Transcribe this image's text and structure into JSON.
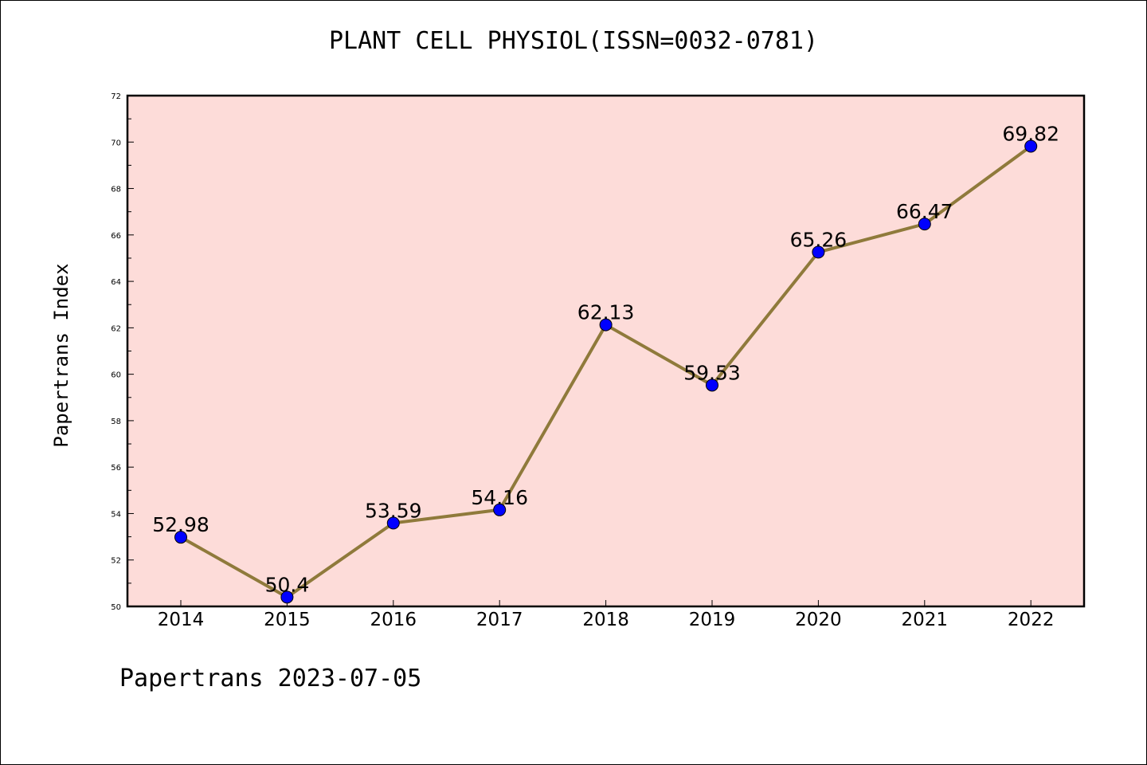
{
  "chart_data": {
    "type": "line",
    "title": "PLANT CELL PHYSIOL(ISSN=0032-0781)",
    "ylabel": "Papertrans Index",
    "xlabel": "",
    "x": [
      "2014",
      "2015",
      "2016",
      "2017",
      "2018",
      "2019",
      "2020",
      "2021",
      "2022"
    ],
    "series": [
      {
        "values": [
          52.98,
          50.4,
          53.59,
          54.16,
          62.13,
          59.53,
          65.26,
          66.47,
          69.82
        ],
        "labels": [
          "52.98",
          "50.4",
          "53.59",
          "54.16",
          "62.13",
          "59.53",
          "65.26",
          "66.47",
          "69.82"
        ]
      }
    ],
    "ylim": [
      50,
      72
    ],
    "yticks": [
      "50",
      "52",
      "54",
      "56",
      "58",
      "60",
      "62",
      "64",
      "66",
      "68",
      "70",
      "72"
    ],
    "grid": false,
    "colors": {
      "plot_background": "#fddcd9",
      "line": "#8f7a3b",
      "marker": "#0000ff"
    }
  },
  "footer": "Papertrans 2023-07-05"
}
